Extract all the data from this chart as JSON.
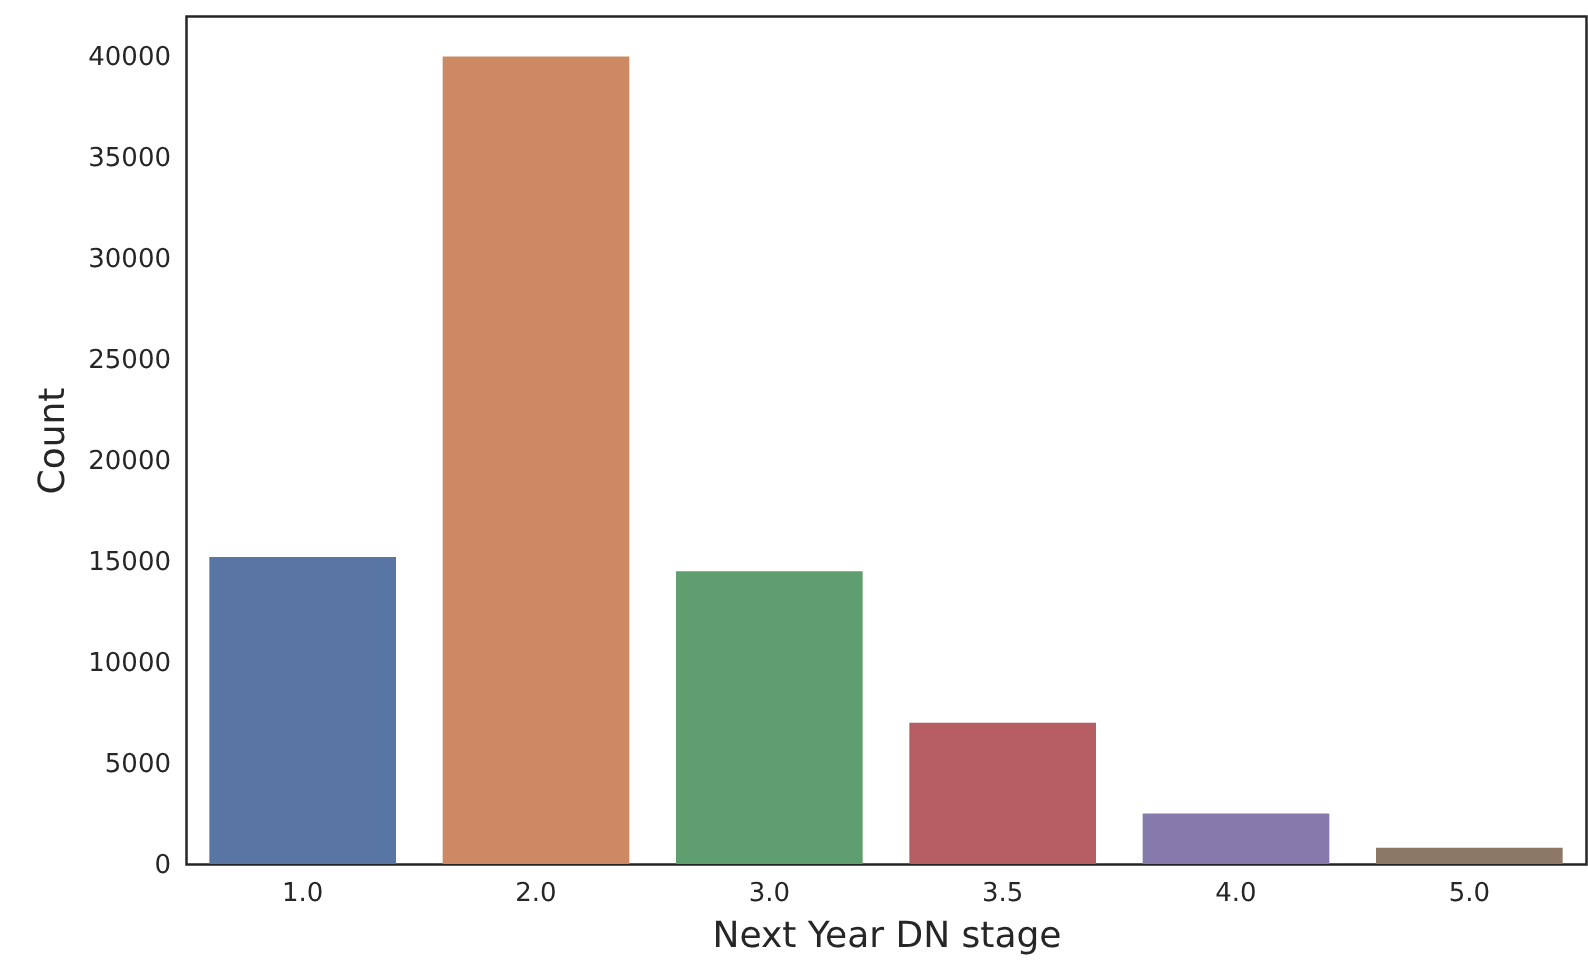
{
  "chart_data": {
    "type": "bar",
    "xlabel": "Next Year DN stage",
    "ylabel": "Count",
    "categories": [
      "1.0",
      "2.0",
      "3.0",
      "3.5",
      "4.0",
      "5.0"
    ],
    "values": [
      15200,
      40000,
      14500,
      7000,
      2500,
      800
    ],
    "colors": [
      "#5975a4",
      "#cc8963",
      "#5f9e6e",
      "#b55d60",
      "#857aab",
      "#8d7866"
    ],
    "ylim": [
      0,
      42000
    ],
    "yticks": [
      0,
      5000,
      10000,
      15000,
      20000,
      25000,
      30000,
      35000,
      40000
    ],
    "grid": false
  }
}
